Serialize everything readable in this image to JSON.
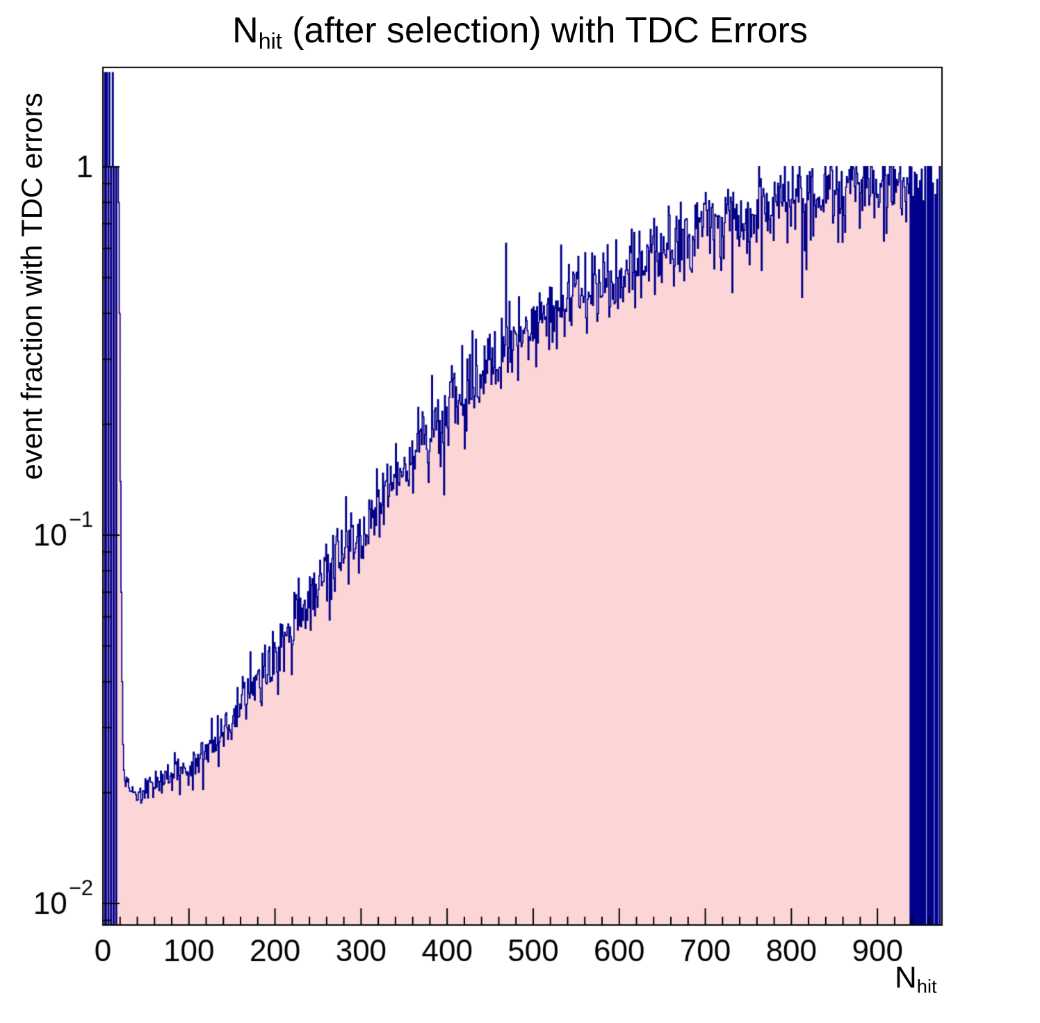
{
  "chart_data": {
    "type": "bar",
    "subtype": "histogram-step-filled-logy",
    "title": {
      "prefix": "N",
      "subscript": "hit",
      "suffix": " (after selection) with TDC Errors"
    },
    "xlabel": {
      "prefix": "N",
      "subscript": "hit"
    },
    "ylabel": "event fraction with TDC errors",
    "x_range": [
      0,
      975
    ],
    "y_log_range": [
      0.00874,
      1.861
    ],
    "y_scale": "log",
    "grid": "off",
    "legend": "none",
    "x_major_ticks": [
      0,
      100,
      200,
      300,
      400,
      500,
      600,
      700,
      800,
      900
    ],
    "x_minor_step": 20,
    "y_major_ticks": [
      {
        "value": 0.01,
        "label_base": "10",
        "label_exp": "−2"
      },
      {
        "value": 0.1,
        "label_base": "10",
        "label_exp": "−1"
      },
      {
        "value": 1,
        "label_base": "1",
        "label_exp": ""
      }
    ],
    "colors": {
      "fill": "#fcd6d6",
      "line": "#00008a",
      "axis": "#000000",
      "text": "#000000"
    },
    "bin_width": 1,
    "left_bins": [
      [
        0,
        0
      ],
      [
        1,
        0
      ],
      [
        2,
        1.8
      ],
      [
        3,
        0
      ],
      [
        4,
        1.8
      ],
      [
        5,
        1
      ],
      [
        6,
        0
      ],
      [
        7,
        1.8
      ],
      [
        8,
        1
      ],
      [
        9,
        0
      ],
      [
        10,
        1
      ],
      [
        11,
        1.8
      ],
      [
        12,
        0
      ],
      [
        13,
        1
      ],
      [
        14,
        1
      ],
      [
        15,
        0
      ],
      [
        16,
        1
      ],
      [
        17,
        1
      ],
      [
        18,
        0.8
      ],
      [
        19,
        0.4
      ],
      [
        20,
        0.14
      ],
      [
        21,
        0.07
      ],
      [
        22,
        0.04
      ],
      [
        23,
        0.027
      ]
    ],
    "trend": [
      [
        24,
        0.023
      ],
      [
        30,
        0.0205
      ],
      [
        40,
        0.02
      ],
      [
        50,
        0.0205
      ],
      [
        60,
        0.021
      ],
      [
        70,
        0.0215
      ],
      [
        80,
        0.022
      ],
      [
        90,
        0.0228
      ],
      [
        100,
        0.0235
      ],
      [
        110,
        0.0245
      ],
      [
        120,
        0.026
      ],
      [
        130,
        0.0275
      ],
      [
        140,
        0.029
      ],
      [
        150,
        0.031
      ],
      [
        160,
        0.0335
      ],
      [
        170,
        0.036
      ],
      [
        180,
        0.039
      ],
      [
        190,
        0.0425
      ],
      [
        200,
        0.046
      ],
      [
        210,
        0.05
      ],
      [
        220,
        0.0545
      ],
      [
        230,
        0.0595
      ],
      [
        240,
        0.065
      ],
      [
        250,
        0.0705
      ],
      [
        260,
        0.0765
      ],
      [
        270,
        0.083
      ],
      [
        280,
        0.0895
      ],
      [
        290,
        0.0965
      ],
      [
        300,
        0.104
      ],
      [
        310,
        0.112
      ],
      [
        320,
        0.121
      ],
      [
        330,
        0.13
      ],
      [
        340,
        0.14
      ],
      [
        350,
        0.151
      ],
      [
        360,
        0.163
      ],
      [
        370,
        0.175
      ],
      [
        380,
        0.188
      ],
      [
        390,
        0.202
      ],
      [
        400,
        0.216
      ],
      [
        410,
        0.23
      ],
      [
        420,
        0.245
      ],
      [
        430,
        0.259
      ],
      [
        440,
        0.274
      ],
      [
        450,
        0.289
      ],
      [
        460,
        0.304
      ],
      [
        470,
        0.319
      ],
      [
        480,
        0.334
      ],
      [
        490,
        0.349
      ],
      [
        500,
        0.364
      ],
      [
        520,
        0.394
      ],
      [
        540,
        0.424
      ],
      [
        560,
        0.454
      ],
      [
        580,
        0.484
      ],
      [
        600,
        0.514
      ],
      [
        620,
        0.545
      ],
      [
        640,
        0.576
      ],
      [
        660,
        0.607
      ],
      [
        680,
        0.638
      ],
      [
        700,
        0.668
      ],
      [
        720,
        0.697
      ],
      [
        740,
        0.725
      ],
      [
        760,
        0.752
      ],
      [
        780,
        0.778
      ],
      [
        800,
        0.803
      ],
      [
        820,
        0.826
      ],
      [
        840,
        0.848
      ],
      [
        860,
        0.868
      ],
      [
        880,
        0.886
      ],
      [
        900,
        0.903
      ],
      [
        920,
        0.918
      ],
      [
        940,
        0.932
      ],
      [
        975,
        0.95
      ]
    ],
    "outliers": [
      [
        468,
        0.62
      ],
      [
        641,
        0.45
      ]
    ],
    "right_zero_bins": [
      938,
      940,
      942,
      944,
      946,
      948,
      950,
      952,
      954,
      956,
      957,
      959,
      961,
      963,
      965,
      966,
      968,
      970,
      971,
      973,
      974
    ],
    "noise": {
      "seed": 1337,
      "sigma_log10": 0.055,
      "spike_prob": 0.06,
      "spike_mult": 2.2
    }
  }
}
